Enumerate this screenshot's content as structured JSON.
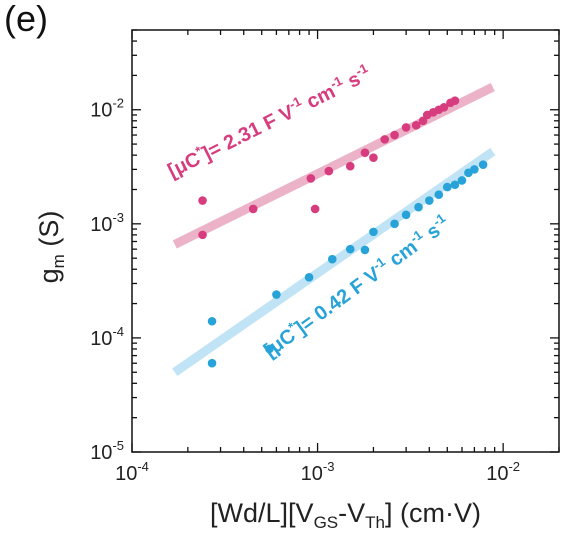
{
  "panel_label": "(e)",
  "chart_data": {
    "type": "scatter",
    "xscale": "log",
    "yscale": "log",
    "xlim": [
      0.0001,
      0.02
    ],
    "ylim": [
      1e-05,
      0.05
    ],
    "x_ticks": [
      {
        "value": 0.0001,
        "base": "10",
        "exp": "-4"
      },
      {
        "value": 0.001,
        "base": "10",
        "exp": "-3"
      },
      {
        "value": 0.01,
        "base": "10",
        "exp": "-2"
      }
    ],
    "y_ticks": [
      {
        "value": 1e-05,
        "base": "10",
        "exp": "-5"
      },
      {
        "value": 0.0001,
        "base": "10",
        "exp": "-4"
      },
      {
        "value": 0.001,
        "base": "10",
        "exp": "-3"
      },
      {
        "value": 0.01,
        "base": "10",
        "exp": "-2"
      }
    ],
    "xlabel": {
      "a": "[Wd/L][V",
      "b": "GS",
      "c": "-V",
      "d": "Th",
      "e": "] (cm·V)"
    },
    "ylabel": {
      "a": "g",
      "b": "m",
      "c": " (S)"
    },
    "series": [
      {
        "color": "#d63c7e",
        "fit_color": "#ecb3c8",
        "fit": {
          "x": [
            0.00017,
            0.0088
          ],
          "y": [
            0.00066,
            0.0158
          ]
        },
        "annotation": {
          "a": "[μC",
          "b": "*",
          "c": "]= 2.31 F V",
          "d": "-1",
          "e": " cm",
          "f": "-1",
          "g": " s",
          "h": "-1"
        },
        "points": [
          [
            0.00024,
            0.0016
          ],
          [
            0.00024,
            0.0008
          ],
          [
            0.00045,
            0.00135
          ],
          [
            0.00092,
            0.0025
          ],
          [
            0.00097,
            0.00135
          ],
          [
            0.00115,
            0.0029
          ],
          [
            0.0015,
            0.0032
          ],
          [
            0.0018,
            0.0042
          ],
          [
            0.002,
            0.0038
          ],
          [
            0.0023,
            0.0055
          ],
          [
            0.0026,
            0.006
          ],
          [
            0.003,
            0.007
          ],
          [
            0.0034,
            0.0073
          ],
          [
            0.0037,
            0.008
          ],
          [
            0.0039,
            0.009
          ],
          [
            0.0042,
            0.0095
          ],
          [
            0.0045,
            0.01
          ],
          [
            0.0048,
            0.0105
          ],
          [
            0.0052,
            0.0115
          ],
          [
            0.0055,
            0.012
          ]
        ]
      },
      {
        "color": "#27a3d9",
        "fit_color": "#c0e4f5",
        "fit": {
          "x": [
            0.00017,
            0.0088
          ],
          "y": [
            5e-05,
            0.0043
          ]
        },
        "annotation": {
          "a": "[μC",
          "b": "*",
          "c": "]= 0.42 F V",
          "d": "-1",
          "e": " cm",
          "f": "-1",
          "g": " s",
          "h": "-1"
        },
        "points": [
          [
            0.00027,
            0.00014
          ],
          [
            0.00027,
            6e-05
          ],
          [
            0.00055,
            8e-05
          ],
          [
            0.0006,
            0.00024
          ],
          [
            0.0009,
            0.00034
          ],
          [
            0.0012,
            0.00049
          ],
          [
            0.0015,
            0.0006
          ],
          [
            0.0018,
            0.00059
          ],
          [
            0.002,
            0.00085
          ],
          [
            0.0026,
            0.001
          ],
          [
            0.003,
            0.0012
          ],
          [
            0.0035,
            0.0014
          ],
          [
            0.004,
            0.0016
          ],
          [
            0.0045,
            0.0018
          ],
          [
            0.005,
            0.0021
          ],
          [
            0.0055,
            0.0022
          ],
          [
            0.006,
            0.0024
          ],
          [
            0.0065,
            0.0028
          ],
          [
            0.007,
            0.003
          ],
          [
            0.0078,
            0.0033
          ]
        ]
      }
    ]
  }
}
